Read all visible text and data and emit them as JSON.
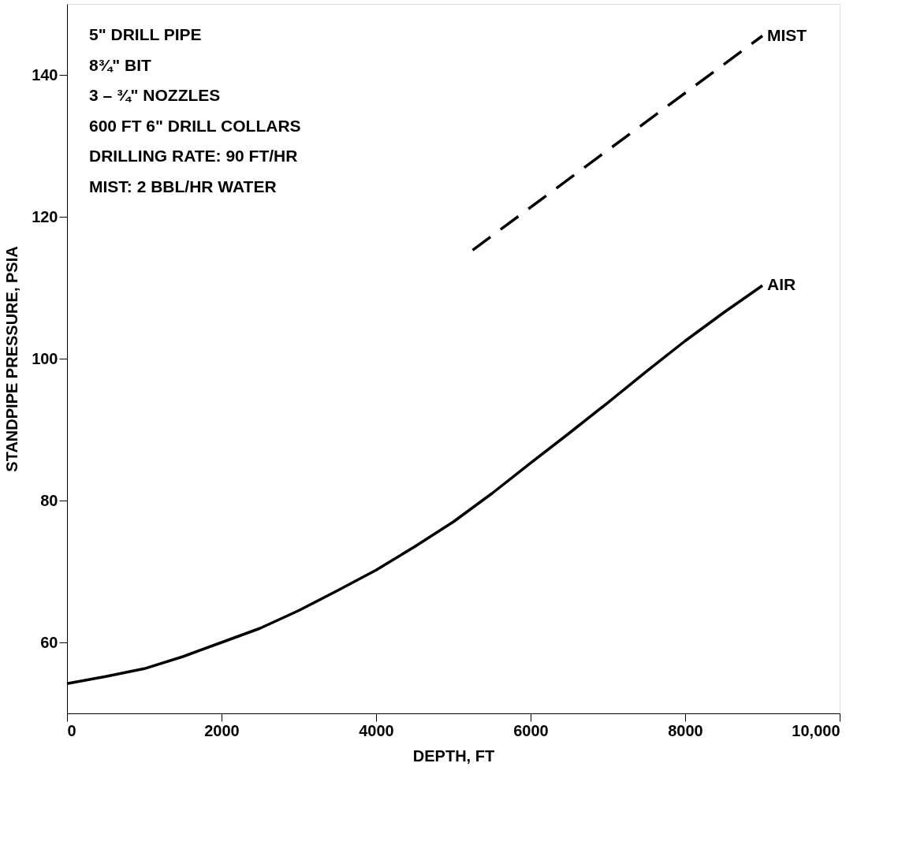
{
  "chart_data": {
    "type": "line",
    "xlabel": "DEPTH, FT",
    "ylabel": "STANDPIPE PRESSURE, PSIA",
    "xlim": [
      0,
      10000
    ],
    "ylim": [
      50,
      150
    ],
    "xticks": [
      0,
      2000,
      4000,
      6000,
      8000,
      {
        "value": 10000,
        "label": "10,000"
      }
    ],
    "yticks": [
      60,
      80,
      100,
      120,
      140
    ],
    "grid": false,
    "series": [
      {
        "name": "MIST",
        "color": "#000000",
        "line_style": "dashed",
        "x": [
          5250,
          9000
        ],
        "values": [
          115.3,
          145.5
        ]
      },
      {
        "name": "AIR",
        "color": "#000000",
        "line_style": "solid",
        "x": [
          0,
          500,
          1000,
          1500,
          2000,
          2500,
          3000,
          3500,
          4000,
          4500,
          5000,
          5500,
          6000,
          6500,
          7000,
          7500,
          8000,
          8500,
          9000
        ],
        "values": [
          54.2,
          55.2,
          56.3,
          58,
          60,
          62,
          64.5,
          67.3,
          70.2,
          73.5,
          77,
          81,
          85.3,
          89.5,
          93.8,
          98.2,
          102.5,
          106.5,
          110.3
        ]
      }
    ],
    "annotations": [
      "5\" DRILL PIPE",
      "8¾\" BIT",
      "3 – ¾\" NOZZLES",
      "600 FT   6\" DRILL COLLARS",
      "DRILLING RATE: 90 FT/HR",
      "MIST: 2 BBL/HR WATER"
    ]
  }
}
